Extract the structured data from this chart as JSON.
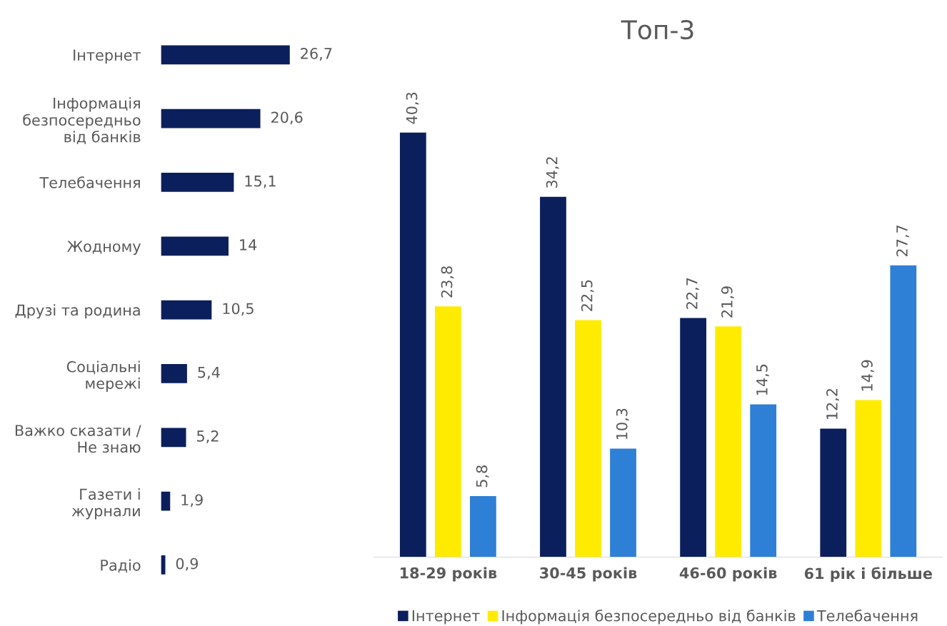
{
  "chart_data": [
    {
      "type": "bar",
      "orientation": "horizontal",
      "categories": [
        "Інтернет",
        "Інформація\nбезпосередньо\nвід банків",
        "Телебачення",
        "Жодному",
        "Друзі та родина",
        "Соціальні\nмережі",
        "Важко сказати /\nНе знаю",
        "Газети і\nжурнали",
        "Радіо"
      ],
      "values": [
        26.7,
        20.6,
        15.1,
        14,
        10.5,
        5.4,
        5.2,
        1.9,
        0.9
      ],
      "value_labels": [
        "26,7",
        "20,6",
        "15,1",
        "14",
        "10,5",
        "5,4",
        "5,2",
        "1,9",
        "0,9"
      ],
      "color": "#0b1f5c",
      "grid": false,
      "legend": false
    },
    {
      "type": "bar",
      "title": "Топ-3",
      "categories": [
        "18-29 років",
        "30-45 років",
        "46-60 років",
        "61 рік і більше"
      ],
      "series": [
        {
          "name": "Інтернет",
          "color": "#0b1f5c",
          "values": [
            40.3,
            34.2,
            22.7,
            12.2
          ],
          "value_labels": [
            "40,3",
            "34,2",
            "22,7",
            "12,2"
          ]
        },
        {
          "name": "Інформація безпосередньо від банків",
          "color": "#ffeb00",
          "values": [
            23.8,
            22.5,
            21.9,
            14.9
          ],
          "value_labels": [
            "23,8",
            "22,5",
            "21,9",
            "14,9"
          ]
        },
        {
          "name": "Телебачення",
          "color": "#2e7fd6",
          "values": [
            5.8,
            10.3,
            14.5,
            27.7
          ],
          "value_labels": [
            "5,8",
            "10,3",
            "14,5",
            "27,7"
          ]
        }
      ],
      "grid": false,
      "legend": "bottom"
    }
  ]
}
